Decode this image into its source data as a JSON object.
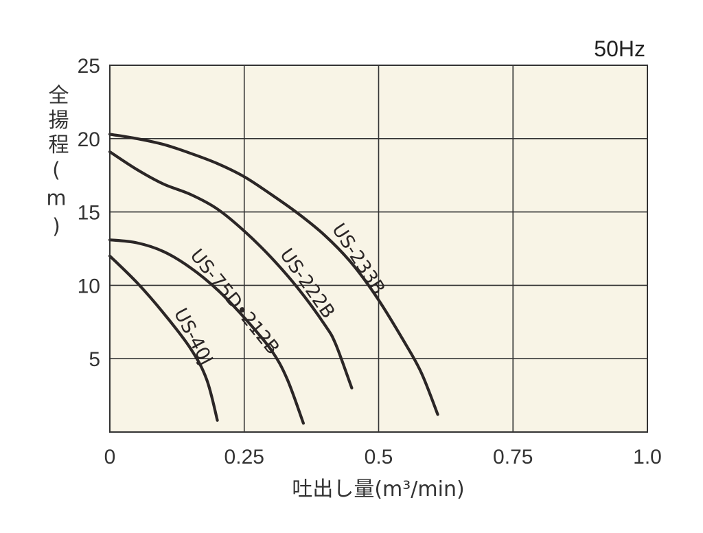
{
  "chart_data": {
    "type": "line",
    "annotation": "50Hz",
    "xlabel": "吐出し量(m³/min)",
    "ylabel": "全揚程(m)",
    "xlim": [
      0,
      1.0
    ],
    "ylim": [
      0,
      25
    ],
    "x_ticks": [
      "0",
      "0.25",
      "0.5",
      "0.75",
      "1.0"
    ],
    "y_ticks": [
      "5",
      "10",
      "15",
      "20",
      "25"
    ],
    "grid": true,
    "colors": {
      "plot_background": "#f8f4e6",
      "grid": "#333333",
      "curve": "#2b2626"
    },
    "series": [
      {
        "name": "US-233B",
        "points": [
          [
            0,
            20.3
          ],
          [
            0.05,
            20.0
          ],
          [
            0.1,
            19.6
          ],
          [
            0.15,
            19.0
          ],
          [
            0.2,
            18.3
          ],
          [
            0.25,
            17.4
          ],
          [
            0.3,
            16.2
          ],
          [
            0.35,
            14.9
          ],
          [
            0.4,
            13.4
          ],
          [
            0.45,
            11.5
          ],
          [
            0.5,
            9.0
          ],
          [
            0.55,
            6.0
          ],
          [
            0.58,
            4.0
          ],
          [
            0.61,
            1.2
          ]
        ]
      },
      {
        "name": "US-222B",
        "points": [
          [
            0,
            19.1
          ],
          [
            0.05,
            17.9
          ],
          [
            0.1,
            16.9
          ],
          [
            0.15,
            16.2
          ],
          [
            0.2,
            15.2
          ],
          [
            0.25,
            13.7
          ],
          [
            0.3,
            11.9
          ],
          [
            0.35,
            9.8
          ],
          [
            0.4,
            7.3
          ],
          [
            0.42,
            6.0
          ],
          [
            0.45,
            3.0
          ]
        ]
      },
      {
        "name": "US-75D•212B",
        "points": [
          [
            0,
            13.1
          ],
          [
            0.05,
            12.9
          ],
          [
            0.1,
            12.3
          ],
          [
            0.15,
            11.2
          ],
          [
            0.2,
            9.7
          ],
          [
            0.25,
            7.8
          ],
          [
            0.3,
            5.6
          ],
          [
            0.33,
            3.6
          ],
          [
            0.36,
            0.6
          ]
        ]
      },
      {
        "name": "US-40J",
        "points": [
          [
            0,
            12.0
          ],
          [
            0.05,
            10.2
          ],
          [
            0.1,
            8.1
          ],
          [
            0.15,
            5.7
          ],
          [
            0.18,
            3.6
          ],
          [
            0.2,
            0.8
          ]
        ]
      }
    ]
  }
}
